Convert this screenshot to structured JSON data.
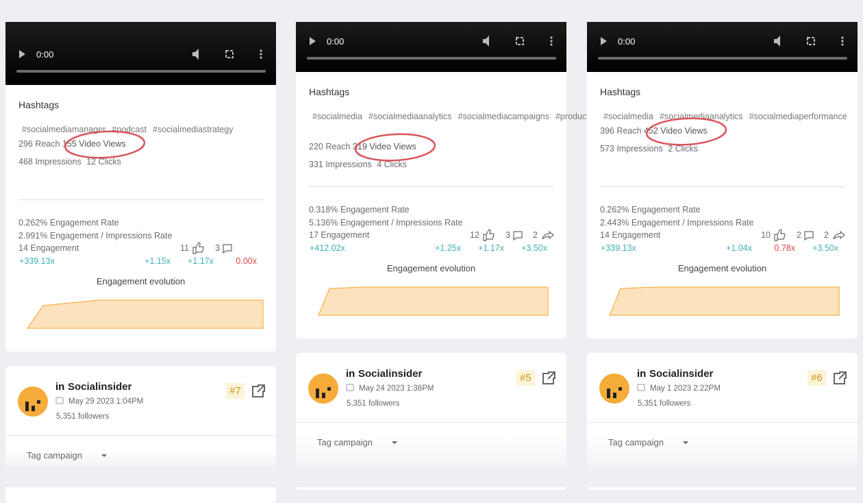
{
  "cards": [
    {
      "time": "0:00",
      "hashtags_label": "Hashtags",
      "hashtags": [
        "#socialmediamanager",
        "#podcast",
        "#socialmediastrategy"
      ],
      "reach": "296 Reach",
      "video_views": "155 Video Views",
      "impressions": "468 Impressions",
      "clicks": "12 Clicks",
      "engagement_rate": "0.262% Engagement Rate",
      "impressions_rate": "2.991% Engagement / Impressions Rate",
      "engagement": "14 Engagement",
      "likes": "11",
      "comments": "3",
      "shares": null,
      "multipliers": [
        "+339.13x",
        "+1.15x",
        "+1.17x",
        "0.00x"
      ],
      "evolution_label": "Engagement evolution",
      "profile": {
        "name": "Socialinsider",
        "date": "May 29 2023 1:04PM",
        "followers": "5,351 followers",
        "rank": "#7"
      },
      "tag_campaign": "Tag campaign"
    },
    {
      "time": "0:00",
      "hashtags_label": "Hashtags",
      "hashtags": [
        "#socialmedia",
        "#socialmediaanalytics",
        "#socialmediacampaigns",
        "#productupdates"
      ],
      "reach": "220 Reach",
      "video_views": "319 Video Views",
      "impressions": "331 Impressions",
      "clicks": "4 Clicks",
      "engagement_rate": "0.318% Engagement Rate",
      "impressions_rate": "5.136% Engagement / Impressions Rate",
      "engagement": "17 Engagement",
      "likes": "12",
      "comments": "3",
      "shares": "2",
      "multipliers": [
        "+412.02x",
        "+1.25x",
        "+1.17x",
        "+3.50x"
      ],
      "evolution_label": "Engagement evolution",
      "profile": {
        "name": "Socialinsider",
        "date": "May 24 2023 1:38PM",
        "followers": "5,351 followers",
        "rank": "#5"
      },
      "tag_campaign": "Tag campaign"
    },
    {
      "time": "0:00",
      "hashtags_label": "Hashtags",
      "hashtags": [
        "#socialmedia",
        "#socialmediaanalytics",
        "#socialmediaperformance"
      ],
      "reach": "396 Reach",
      "video_views": "452 Video Views",
      "impressions": "573 Impressions",
      "clicks": "2 Clicks",
      "engagement_rate": "0.262% Engagement Rate",
      "impressions_rate": "2.443% Engagement / Impressions Rate",
      "engagement": "14 Engagement",
      "likes": "10",
      "comments": "2",
      "shares": "2",
      "multipliers": [
        "+339.13x",
        "+1.04x",
        "0.78x",
        "+3.50x"
      ],
      "evolution_label": "Engagement evolution",
      "profile": {
        "name": "Socialinsider",
        "date": "May 1 2023 2:22PM",
        "followers": "5,351 followers",
        "rank": "#6"
      },
      "tag_campaign": "Tag campaign"
    }
  ]
}
